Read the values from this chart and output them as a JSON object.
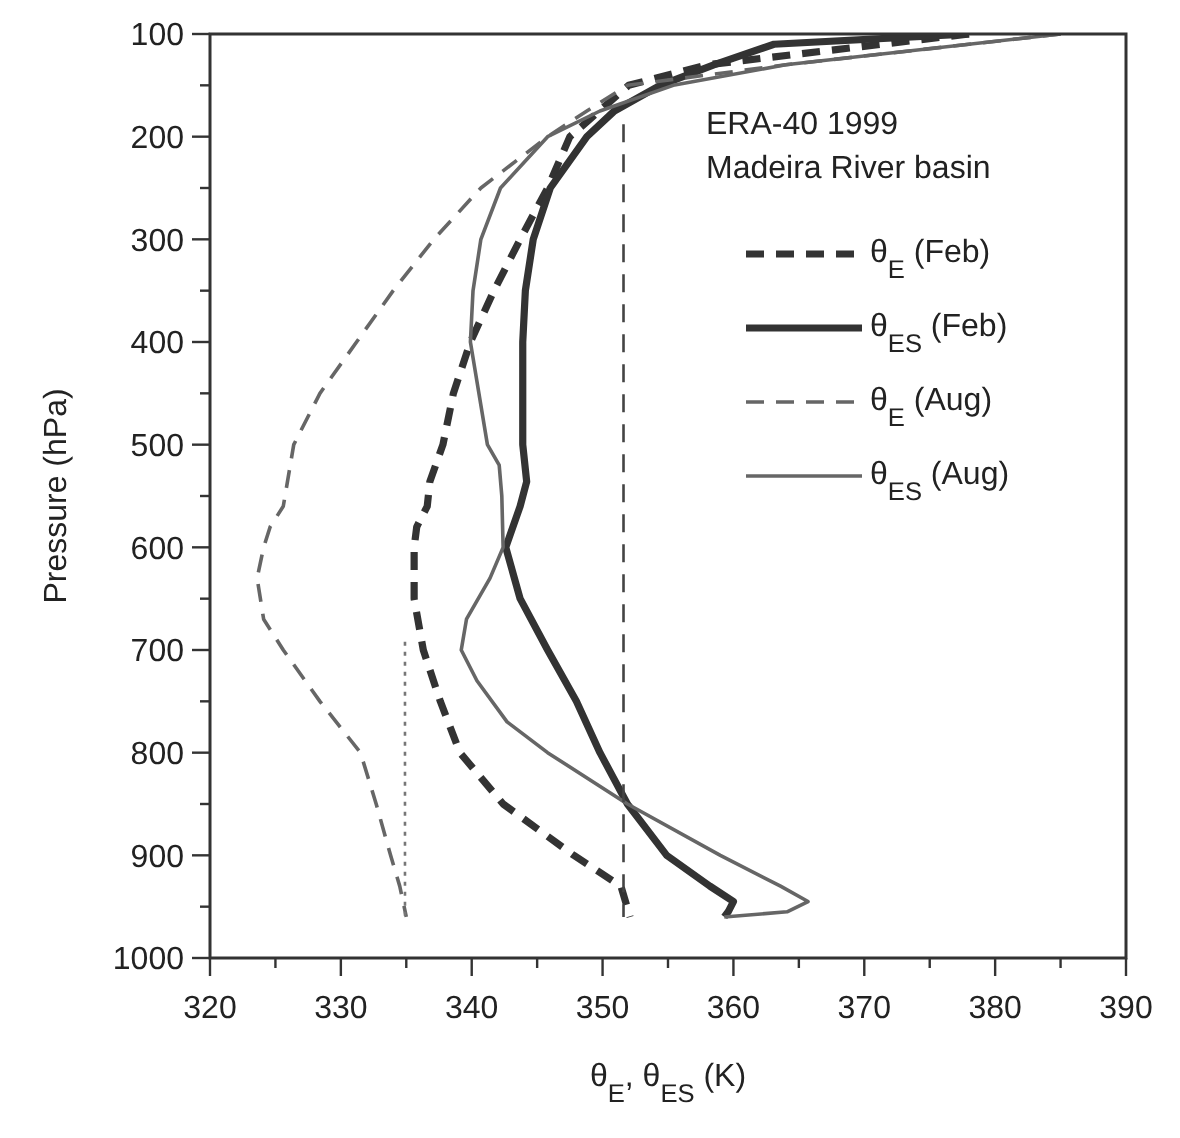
{
  "chart_data": {
    "type": "line",
    "xlabel": "θ$_{E}$, θ$_{ES}$ (K)",
    "ylabel": "Pressure (hPa)",
    "annotations": [
      "ERA-40 1999",
      "Madeira River basin"
    ],
    "xlim": [
      320,
      390
    ],
    "ylim": [
      1000,
      100
    ],
    "xticks": [
      320,
      {
        "value": 325,
        "label": null
      },
      330,
      {
        "value": 335,
        "label": null
      },
      340,
      {
        "value": 345,
        "label": null
      },
      350,
      {
        "value": 355,
        "label": null
      },
      360,
      {
        "value": 365,
        "label": null
      },
      370,
      {
        "value": 375,
        "label": null
      },
      380,
      {
        "value": 385,
        "label": null
      },
      390
    ],
    "yticks": [
      100,
      {
        "value": 150,
        "label": null
      },
      200,
      {
        "value": 250,
        "label": null
      },
      300,
      {
        "value": 350,
        "label": null
      },
      400,
      {
        "value": 450,
        "label": null
      },
      500,
      {
        "value": 550,
        "label": null
      },
      600,
      {
        "value": 650,
        "label": null
      },
      700,
      {
        "value": 750,
        "label": null
      },
      800,
      {
        "value": 850,
        "label": null
      },
      900,
      {
        "value": 950,
        "label": null
      },
      1000
    ],
    "grid": false,
    "legend": "top right",
    "series": [
      {
        "name": "θ$_{E}$ (Feb)",
        "color": "#333333",
        "line_style": "dashed",
        "x": [
          378,
          358,
          352,
          347.5,
          345.8,
          343.7,
          341.7,
          339.9,
          338.6,
          337.8,
          336.8,
          336.6,
          335.8,
          335.6,
          335.6,
          336.3,
          337.6,
          339.1,
          342.4,
          347.8,
          351.4,
          352.1
        ],
        "values": [
          100,
          130,
          150,
          200,
          250,
          300,
          350,
          400,
          450,
          500,
          536,
          560,
          580,
          600,
          650,
          700,
          750,
          800,
          850,
          900,
          930,
          960
        ]
      },
      {
        "name": "θ$_{ES}$ (Feb)",
        "color": "#333333",
        "line_style": "solid",
        "x": [
          378,
          363.1,
          358.5,
          354.4,
          350.9,
          348.8,
          346,
          344.7,
          344.1,
          343.9,
          343.9,
          344.2,
          343.7,
          342.6,
          343.7,
          345.8,
          348,
          349.8,
          351.9,
          354.9,
          358.2,
          360,
          359.6,
          359.3
        ],
        "values": [
          100,
          110,
          130,
          150,
          175,
          200,
          250,
          300,
          350,
          400,
          500,
          536,
          560,
          600,
          650,
          700,
          750,
          800,
          850,
          900,
          930,
          945,
          955,
          960
        ]
      },
      {
        "name": "θ$_{E}$ (Aug)",
        "color": "#666666",
        "line_style": "dashed",
        "x": [
          385,
          364,
          351.9,
          348.8,
          345.8,
          340.7,
          337.1,
          334,
          331.2,
          328.4,
          326.4,
          325.6,
          324.6,
          324.1,
          323.6,
          324.1,
          325.6,
          328.4,
          331.5,
          332.7,
          333.8,
          334.5,
          335
        ],
        "values": [
          100,
          130,
          150,
          175,
          200,
          250,
          300,
          350,
          400,
          450,
          500,
          560,
          580,
          600,
          630,
          670,
          700,
          750,
          800,
          850,
          900,
          930,
          960
        ]
      },
      {
        "name": "θ$_{ES}$ (Aug)",
        "color": "#666666",
        "line_style": "solid",
        "x": [
          385,
          364,
          355.4,
          349.8,
          345.8,
          342.2,
          340.7,
          340.1,
          339.9,
          341.2,
          342.1,
          342.3,
          342.4,
          341.4,
          339.6,
          339.2,
          340.4,
          342.7,
          345.8,
          351.9,
          359,
          363.6,
          365.7,
          364.1,
          359.3
        ],
        "values": [
          100,
          130,
          150,
          175,
          200,
          250,
          300,
          350,
          400,
          500,
          520,
          550,
          600,
          630,
          670,
          700,
          730,
          770,
          800,
          850,
          900,
          930,
          945,
          955,
          960
        ]
      },
      {
        "color": "#444444",
        "line_style": "dashed",
        "x": [
          351.6,
          351.6
        ],
        "values": [
          188,
          960
        ]
      },
      {
        "color": "#777777",
        "line_style": "dotted",
        "x": [
          334.9,
          334.9
        ],
        "values": [
          692,
          960
        ]
      }
    ]
  }
}
